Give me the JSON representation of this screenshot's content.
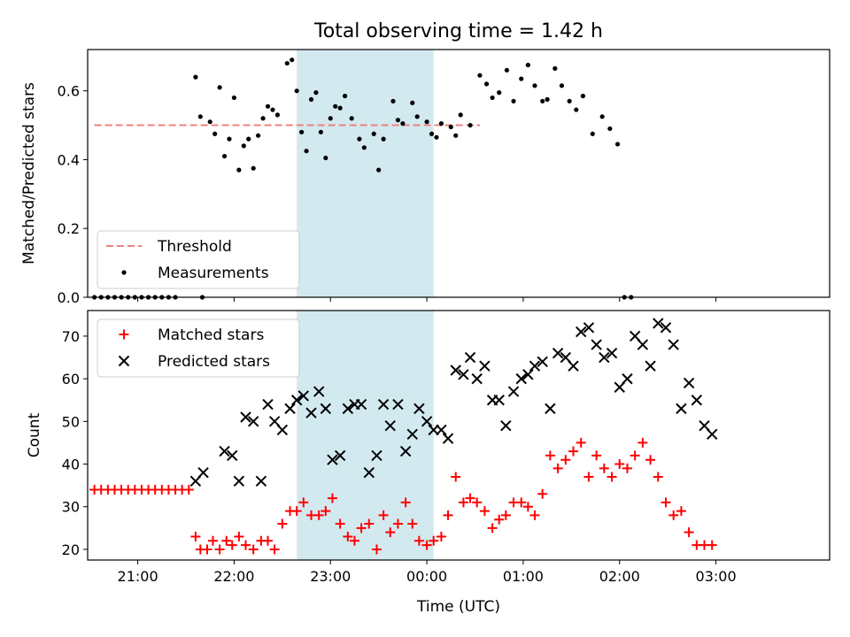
{
  "title": "Total observing time = 1.42 h",
  "chart_data": [
    {
      "type": "scatter",
      "ylabel": "Matched/Predicted stars",
      "xlim": [
        -0.52,
        7.18
      ],
      "ylim": [
        0,
        0.72
      ],
      "yticks": [
        0.0,
        0.2,
        0.4,
        0.6
      ],
      "ytick_labels": [
        "0.0",
        "0.2",
        "0.4",
        "0.6"
      ],
      "x_unit": "hours after 21:00 UTC",
      "shaded_region": {
        "x": [
          1.65,
          3.07
        ],
        "color": "#d3e9f0"
      },
      "threshold": {
        "name": "Threshold",
        "value": 0.5,
        "x": [
          -0.45,
          3.55
        ],
        "color": "#f08080",
        "style": "dashed"
      },
      "legend": {
        "position": "lower-left",
        "entries": [
          {
            "label": "Threshold",
            "marker": "dashed-line",
            "color": "#f08080"
          },
          {
            "label": "Measurements",
            "marker": "dot",
            "color": "#000000"
          }
        ]
      },
      "series": [
        {
          "name": "Measurements",
          "color": "#000000",
          "marker": "dot",
          "points": [
            [
              -0.45,
              0
            ],
            [
              -0.38,
              0
            ],
            [
              -0.31,
              0
            ],
            [
              -0.24,
              0
            ],
            [
              -0.17,
              0
            ],
            [
              -0.1,
              0
            ],
            [
              -0.03,
              0
            ],
            [
              0.04,
              0
            ],
            [
              0.11,
              0
            ],
            [
              0.18,
              0
            ],
            [
              0.25,
              0
            ],
            [
              0.32,
              0
            ],
            [
              0.39,
              0
            ],
            [
              0.67,
              0
            ],
            [
              0.6,
              0.64
            ],
            [
              0.65,
              0.525
            ],
            [
              0.75,
              0.51
            ],
            [
              0.8,
              0.475
            ],
            [
              0.85,
              0.61
            ],
            [
              0.9,
              0.41
            ],
            [
              0.95,
              0.46
            ],
            [
              1.0,
              0.58
            ],
            [
              1.05,
              0.37
            ],
            [
              1.1,
              0.44
            ],
            [
              1.15,
              0.46
            ],
            [
              1.2,
              0.375
            ],
            [
              1.25,
              0.47
            ],
            [
              1.3,
              0.52
            ],
            [
              1.35,
              0.555
            ],
            [
              1.4,
              0.545
            ],
            [
              1.45,
              0.53
            ],
            [
              1.55,
              0.68
            ],
            [
              1.6,
              0.69
            ],
            [
              1.65,
              0.6
            ],
            [
              1.7,
              0.48
            ],
            [
              1.75,
              0.425
            ],
            [
              1.8,
              0.575
            ],
            [
              1.85,
              0.595
            ],
            [
              1.9,
              0.48
            ],
            [
              1.95,
              0.405
            ],
            [
              2.0,
              0.52
            ],
            [
              2.05,
              0.555
            ],
            [
              2.1,
              0.55
            ],
            [
              2.15,
              0.585
            ],
            [
              2.22,
              0.52
            ],
            [
              2.3,
              0.46
            ],
            [
              2.35,
              0.435
            ],
            [
              2.45,
              0.475
            ],
            [
              2.5,
              0.37
            ],
            [
              2.55,
              0.46
            ],
            [
              2.65,
              0.57
            ],
            [
              2.7,
              0.515
            ],
            [
              2.75,
              0.505
            ],
            [
              2.85,
              0.565
            ],
            [
              2.9,
              0.525
            ],
            [
              3.0,
              0.51
            ],
            [
              3.05,
              0.475
            ],
            [
              3.1,
              0.465
            ],
            [
              3.15,
              0.505
            ],
            [
              3.25,
              0.495
            ],
            [
              3.3,
              0.47
            ],
            [
              3.35,
              0.53
            ],
            [
              3.45,
              0.5
            ],
            [
              3.55,
              0.645
            ],
            [
              3.62,
              0.62
            ],
            [
              3.68,
              0.58
            ],
            [
              3.75,
              0.595
            ],
            [
              3.83,
              0.66
            ],
            [
              3.9,
              0.57
            ],
            [
              3.98,
              0.635
            ],
            [
              4.05,
              0.675
            ],
            [
              4.12,
              0.615
            ],
            [
              4.2,
              0.57
            ],
            [
              4.25,
              0.575
            ],
            [
              4.33,
              0.665
            ],
            [
              4.4,
              0.615
            ],
            [
              4.48,
              0.57
            ],
            [
              4.55,
              0.545
            ],
            [
              4.62,
              0.585
            ],
            [
              4.72,
              0.475
            ],
            [
              4.82,
              0.525
            ],
            [
              4.9,
              0.49
            ],
            [
              4.98,
              0.445
            ],
            [
              5.05,
              0
            ],
            [
              5.12,
              0
            ]
          ]
        }
      ]
    },
    {
      "type": "scatter",
      "xlabel": "Time (UTC)",
      "ylabel": "Count",
      "xlim": [
        -0.52,
        7.18
      ],
      "ylim": [
        17.5,
        76
      ],
      "yticks": [
        20,
        30,
        40,
        50,
        60,
        70
      ],
      "ytick_labels": [
        "20",
        "30",
        "40",
        "50",
        "60",
        "70"
      ],
      "xticks": [
        0,
        1,
        2,
        3,
        4,
        5,
        6
      ],
      "xtick_labels": [
        "21:00",
        "22:00",
        "23:00",
        "00:00",
        "01:00",
        "02:00",
        "03:00"
      ],
      "x_unit": "hours after 21:00 UTC",
      "shaded_region": {
        "x": [
          1.65,
          3.07
        ],
        "color": "#d3e9f0"
      },
      "legend": {
        "position": "upper-left",
        "entries": [
          {
            "label": "Matched stars",
            "marker": "plus",
            "color": "#ff0000"
          },
          {
            "label": "Predicted stars",
            "marker": "x",
            "color": "#000000"
          }
        ]
      },
      "series": [
        {
          "name": "Matched stars",
          "color": "#ff0000",
          "marker": "plus",
          "points": [
            [
              -0.45,
              34
            ],
            [
              -0.38,
              34
            ],
            [
              -0.31,
              34
            ],
            [
              -0.24,
              34
            ],
            [
              -0.17,
              34
            ],
            [
              -0.1,
              34
            ],
            [
              -0.03,
              34
            ],
            [
              0.04,
              34
            ],
            [
              0.11,
              34
            ],
            [
              0.18,
              34
            ],
            [
              0.25,
              34
            ],
            [
              0.32,
              34
            ],
            [
              0.39,
              34
            ],
            [
              0.46,
              34
            ],
            [
              0.53,
              34
            ],
            [
              0.6,
              23
            ],
            [
              0.65,
              20
            ],
            [
              0.72,
              20
            ],
            [
              0.78,
              22
            ],
            [
              0.85,
              20
            ],
            [
              0.92,
              22
            ],
            [
              0.98,
              21
            ],
            [
              1.05,
              23
            ],
            [
              1.12,
              21
            ],
            [
              1.2,
              20
            ],
            [
              1.28,
              22
            ],
            [
              1.35,
              22
            ],
            [
              1.42,
              20
            ],
            [
              1.5,
              26
            ],
            [
              1.58,
              29
            ],
            [
              1.65,
              29
            ],
            [
              1.72,
              31
            ],
            [
              1.8,
              28
            ],
            [
              1.88,
              28
            ],
            [
              1.95,
              29
            ],
            [
              2.02,
              32
            ],
            [
              2.1,
              26
            ],
            [
              2.18,
              23
            ],
            [
              2.25,
              22
            ],
            [
              2.32,
              25
            ],
            [
              2.4,
              26
            ],
            [
              2.48,
              20
            ],
            [
              2.55,
              28
            ],
            [
              2.62,
              24
            ],
            [
              2.7,
              26
            ],
            [
              2.78,
              31
            ],
            [
              2.85,
              26
            ],
            [
              2.92,
              22
            ],
            [
              3.0,
              21
            ],
            [
              3.07,
              22
            ],
            [
              3.15,
              23
            ],
            [
              3.22,
              28
            ],
            [
              3.3,
              37
            ],
            [
              3.38,
              31
            ],
            [
              3.45,
              32
            ],
            [
              3.52,
              31
            ],
            [
              3.6,
              29
            ],
            [
              3.68,
              25
            ],
            [
              3.75,
              27
            ],
            [
              3.82,
              28
            ],
            [
              3.9,
              31
            ],
            [
              3.98,
              31
            ],
            [
              4.05,
              30
            ],
            [
              4.12,
              28
            ],
            [
              4.2,
              33
            ],
            [
              4.28,
              42
            ],
            [
              4.36,
              39
            ],
            [
              4.44,
              41
            ],
            [
              4.52,
              43
            ],
            [
              4.6,
              45
            ],
            [
              4.68,
              37
            ],
            [
              4.76,
              42
            ],
            [
              4.84,
              39
            ],
            [
              4.92,
              37
            ],
            [
              5.0,
              40
            ],
            [
              5.08,
              39
            ],
            [
              5.16,
              42
            ],
            [
              5.24,
              45
            ],
            [
              5.32,
              41
            ],
            [
              5.4,
              37
            ],
            [
              5.48,
              31
            ],
            [
              5.56,
              28
            ],
            [
              5.64,
              29
            ],
            [
              5.72,
              24
            ],
            [
              5.8,
              21
            ],
            [
              5.88,
              21
            ],
            [
              5.96,
              21
            ]
          ]
        },
        {
          "name": "Predicted stars",
          "color": "#000000",
          "marker": "x",
          "points": [
            [
              0.6,
              36
            ],
            [
              0.68,
              38
            ],
            [
              0.9,
              43
            ],
            [
              0.98,
              42
            ],
            [
              1.05,
              36
            ],
            [
              1.12,
              51
            ],
            [
              1.2,
              50
            ],
            [
              1.28,
              36
            ],
            [
              1.35,
              54
            ],
            [
              1.42,
              50
            ],
            [
              1.5,
              48
            ],
            [
              1.58,
              53
            ],
            [
              1.65,
              55
            ],
            [
              1.72,
              56
            ],
            [
              1.8,
              52
            ],
            [
              1.88,
              57
            ],
            [
              1.95,
              53
            ],
            [
              2.02,
              41
            ],
            [
              2.1,
              42
            ],
            [
              2.18,
              53
            ],
            [
              2.25,
              54
            ],
            [
              2.32,
              54
            ],
            [
              2.4,
              38
            ],
            [
              2.48,
              42
            ],
            [
              2.55,
              54
            ],
            [
              2.62,
              49
            ],
            [
              2.7,
              54
            ],
            [
              2.78,
              43
            ],
            [
              2.85,
              47
            ],
            [
              2.92,
              53
            ],
            [
              3.0,
              50
            ],
            [
              3.07,
              48
            ],
            [
              3.15,
              48
            ],
            [
              3.22,
              46
            ],
            [
              3.3,
              62
            ],
            [
              3.38,
              61
            ],
            [
              3.45,
              65
            ],
            [
              3.52,
              60
            ],
            [
              3.6,
              63
            ],
            [
              3.68,
              55
            ],
            [
              3.75,
              55
            ],
            [
              3.82,
              49
            ],
            [
              3.9,
              57
            ],
            [
              3.98,
              60
            ],
            [
              4.05,
              61
            ],
            [
              4.12,
              63
            ],
            [
              4.2,
              64
            ],
            [
              4.28,
              53
            ],
            [
              4.36,
              66
            ],
            [
              4.44,
              65
            ],
            [
              4.52,
              63
            ],
            [
              4.6,
              71
            ],
            [
              4.68,
              72
            ],
            [
              4.76,
              68
            ],
            [
              4.84,
              65
            ],
            [
              4.92,
              66
            ],
            [
              5.0,
              58
            ],
            [
              5.08,
              60
            ],
            [
              5.16,
              70
            ],
            [
              5.24,
              68
            ],
            [
              5.32,
              63
            ],
            [
              5.4,
              73
            ],
            [
              5.48,
              72
            ],
            [
              5.56,
              68
            ],
            [
              5.64,
              53
            ],
            [
              5.72,
              59
            ],
            [
              5.8,
              55
            ],
            [
              5.88,
              49
            ],
            [
              5.96,
              47
            ]
          ]
        }
      ]
    }
  ]
}
